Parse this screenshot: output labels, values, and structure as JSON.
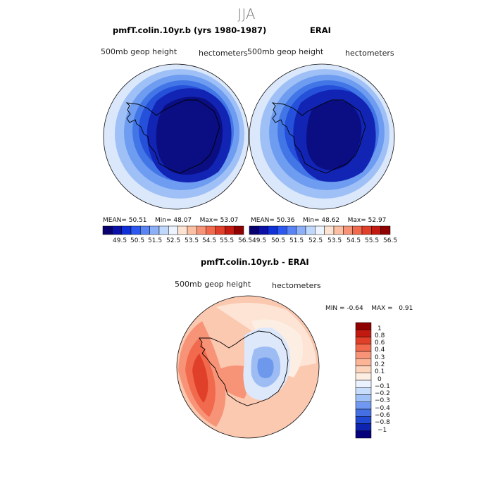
{
  "season": "JJA",
  "panel_left": {
    "title": "pmfT.colin.10yr.b (yrs 1980-1987)",
    "variable": "500mb  geop  height",
    "units": "hectometers",
    "stats": {
      "mean_label": "MEAN=",
      "mean": "50.51",
      "min_label": "Min=",
      "min": "48.07",
      "max_label": "Max=",
      "max": "53.07"
    }
  },
  "panel_right": {
    "title": "ERAI",
    "variable": "500mb  geop  height",
    "units": "hectometers",
    "stats": {
      "mean_label": "MEAN=",
      "mean": "50.36",
      "min_label": "Min=",
      "min": "48.62",
      "max_label": "Max=",
      "max": "52.97"
    }
  },
  "colorbar_main": {
    "ticks": [
      "49.5",
      "50.5",
      "51.5",
      "52.5",
      "53.5",
      "54.5",
      "55.5",
      "56.5"
    ],
    "colors": [
      "#08006e",
      "#0a10a8",
      "#1030d8",
      "#2c58f0",
      "#5a84f4",
      "#8cb0f8",
      "#c0d8fc",
      "#eef4ff",
      "#fde4d2",
      "#fbc0a4",
      "#f79478",
      "#f26a4e",
      "#e0402a",
      "#c21a10",
      "#8f0000"
    ]
  },
  "panel_diff": {
    "title": "pmfT.colin.10yr.b - ERAI",
    "variable": "500mb  geop  height",
    "units": "hectometers",
    "stats": {
      "min_label": "MIN =",
      "min": "-0.64",
      "max_label": "MAX =",
      "max": "0.91"
    }
  },
  "colorbar_diff": {
    "ticks": [
      "1",
      "0.8",
      "0.6",
      "0.4",
      "0.3",
      "0.2",
      "0.1",
      "0",
      "−0.1",
      "−0.2",
      "−0.3",
      "−0.4",
      "−0.6",
      "−0.8",
      "−1"
    ],
    "colors": [
      "#8f0000",
      "#c21a10",
      "#e0402a",
      "#f26a4e",
      "#f79478",
      "#fbb496",
      "#fcd4bc",
      "#fdeee4",
      "#eaf2ff",
      "#c8dcfc",
      "#a0c0f8",
      "#7098f0",
      "#4470e4",
      "#2048d0",
      "#0e24b0",
      "#06007a"
    ]
  }
}
